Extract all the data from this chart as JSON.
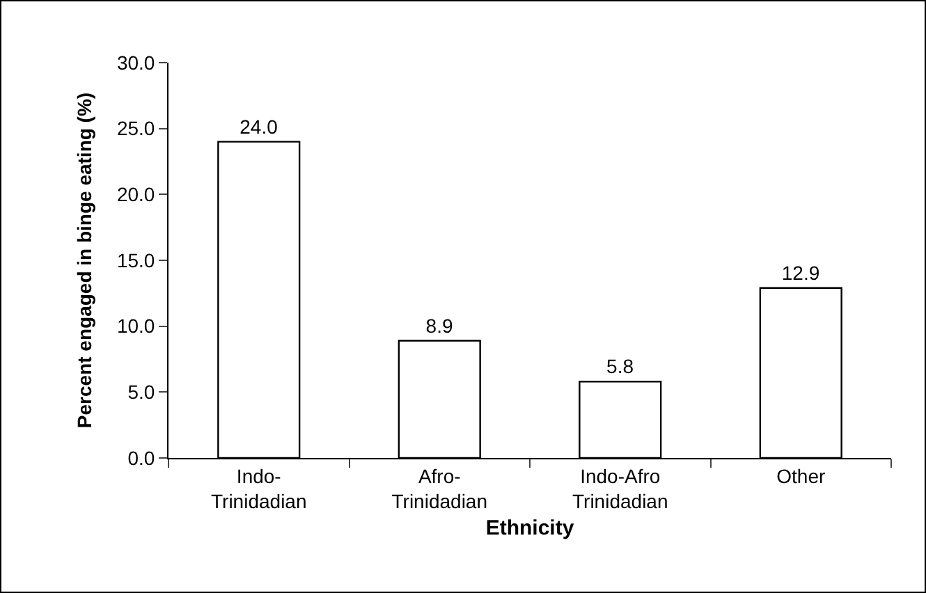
{
  "chart_data": {
    "type": "bar",
    "xlabel": "Ethnicity",
    "ylabel": "Percent engaged in binge eating (%)",
    "categories": [
      "Indo-\nTrinidadian",
      "Afro-\nTrinidadian",
      "Indo-Afro\nTrinidadian",
      "Other"
    ],
    "values": [
      24.0,
      8.9,
      5.8,
      12.9
    ],
    "value_labels": [
      "24.0",
      "8.9",
      "5.8",
      "12.9"
    ],
    "color": "#ffffff",
    "ylim": [
      0,
      30
    ],
    "yticks": [
      {
        "value": 0,
        "label": "0.0"
      },
      {
        "value": 5,
        "label": "5.0"
      },
      {
        "value": 10,
        "label": "10.0"
      },
      {
        "value": 15,
        "label": "15.0"
      },
      {
        "value": 20,
        "label": "20.0"
      },
      {
        "value": 25,
        "label": "25.0"
      },
      {
        "value": 30,
        "label": "30.0"
      }
    ],
    "grid": false,
    "legend": false
  }
}
